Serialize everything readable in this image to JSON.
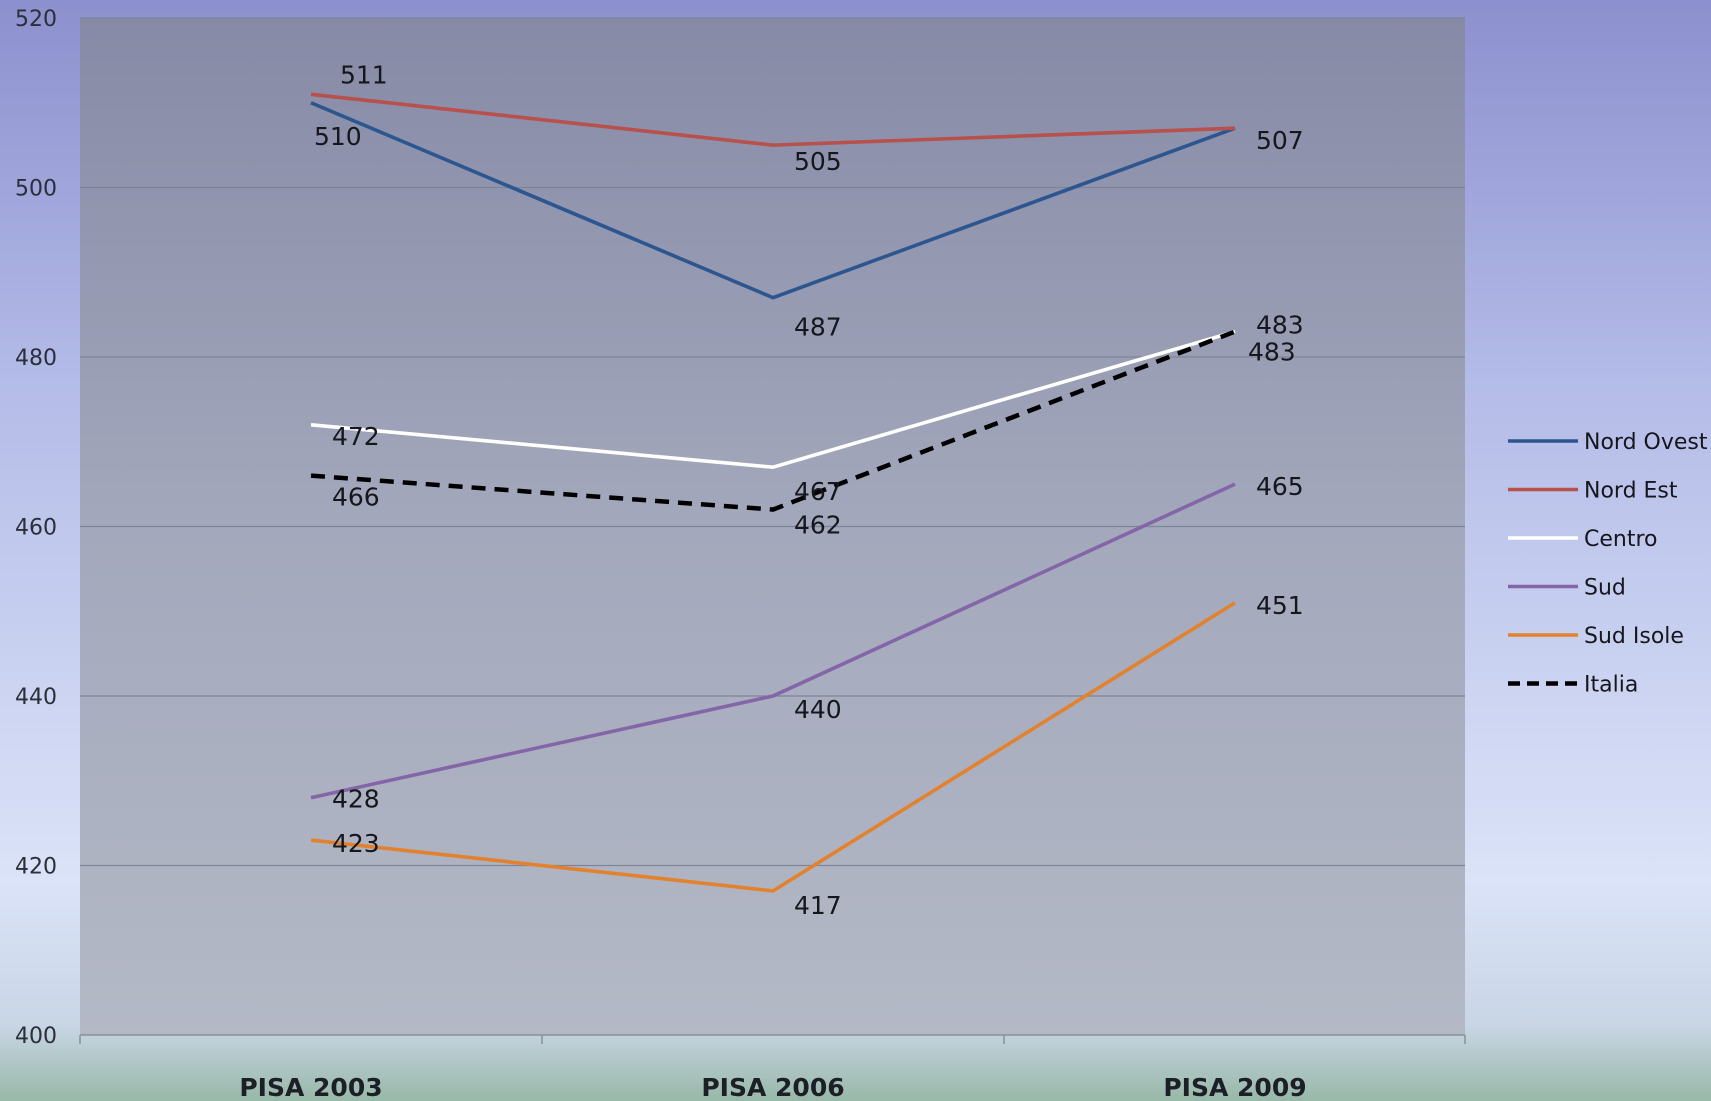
{
  "chart_data": {
    "type": "line",
    "title": "",
    "xlabel": "",
    "ylabel": "",
    "categories": [
      "PISA 2003",
      "PISA 2006",
      "PISA 2009"
    ],
    "ylim": [
      400,
      520
    ],
    "yticks": [
      "400",
      "420",
      "440",
      "460",
      "480",
      "500",
      "520"
    ],
    "grid": true,
    "legend_position": "right",
    "series": [
      {
        "name": "Nord Ovest",
        "values": [
          510,
          487,
          507
        ],
        "labels": [
          "510",
          "487",
          "507"
        ],
        "color": "#2c5690",
        "dash": false
      },
      {
        "name": "Nord Est",
        "values": [
          511,
          505,
          507
        ],
        "labels": [
          "511",
          "505",
          ""
        ],
        "color": "#b8504b",
        "dash": false
      },
      {
        "name": "Centro",
        "values": [
          472,
          467,
          483
        ],
        "labels": [
          "472",
          "467",
          "483"
        ],
        "color": "#ffffff",
        "dash": false
      },
      {
        "name": "Sud",
        "values": [
          428,
          440,
          465
        ],
        "labels": [
          "428",
          "440",
          "465"
        ],
        "color": "#8466a8",
        "dash": false
      },
      {
        "name": "Sud Isole",
        "values": [
          423,
          417,
          451
        ],
        "labels": [
          "423",
          "417",
          "451"
        ],
        "color": "#e2822e",
        "dash": false
      },
      {
        "name": "Italia",
        "values": [
          466,
          462,
          483
        ],
        "labels": [
          "466",
          "462",
          "483"
        ],
        "color": "#000000",
        "dash": true
      }
    ]
  }
}
